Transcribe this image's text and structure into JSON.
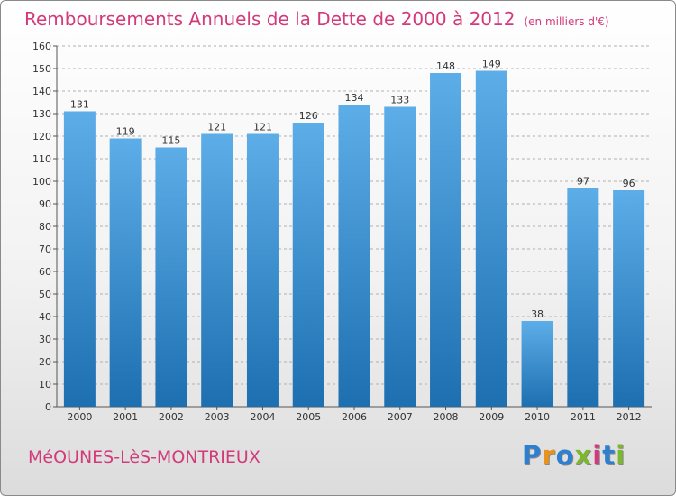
{
  "title": "Remboursements Annuels de la Dette de 2000 à 2012",
  "unit": "(en milliers d'€)",
  "commune": "MéOUNES-LèS-MONTRIEUX",
  "logo": {
    "text": "Proxiti",
    "colors": [
      "#2f7fd0",
      "#e8931e",
      "#2f7fd0",
      "#7cb82f",
      "#d23a7a",
      "#2f7fd0",
      "#7cb82f"
    ]
  },
  "colors": {
    "title": "#d23a7a",
    "bar_light": "#5dade8",
    "bar_dark": "#1d6fb0",
    "axis": "#555555",
    "grid": "#b0b0b0"
  },
  "chart_data": {
    "type": "bar",
    "categories": [
      "2000",
      "2001",
      "2002",
      "2003",
      "2004",
      "2005",
      "2006",
      "2007",
      "2008",
      "2009",
      "2010",
      "2011",
      "2012"
    ],
    "values": [
      131,
      119,
      115,
      121,
      121,
      126,
      134,
      133,
      148,
      149,
      38,
      97,
      96
    ],
    "title": "Remboursements Annuels de la Dette de 2000 à 2012",
    "xlabel": "",
    "ylabel": "",
    "ylim": [
      0,
      160
    ],
    "yticks": [
      0,
      10,
      20,
      30,
      40,
      50,
      60,
      70,
      80,
      90,
      100,
      110,
      120,
      130,
      140,
      150,
      160
    ],
    "grid": true,
    "data_labels": true
  }
}
